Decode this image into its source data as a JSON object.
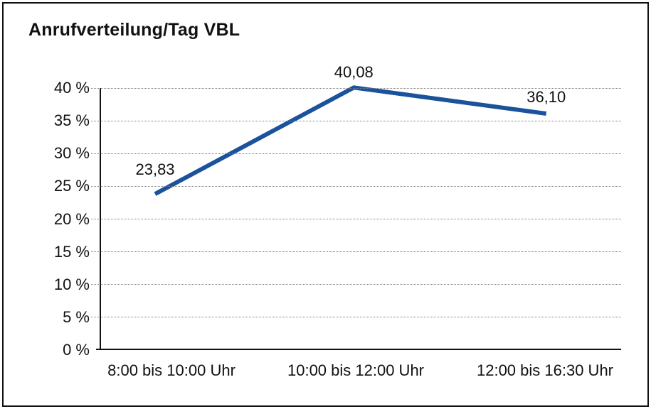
{
  "chart_data": {
    "type": "line",
    "title": "Anrufverteilung/Tag VBL",
    "categories": [
      "8:00 bis 10:00 Uhr",
      "10:00 bis 12:00 Uhr",
      "12:00 bis 16:30 Uhr"
    ],
    "series": [
      {
        "values": [
          23.83,
          40.08,
          36.1
        ]
      }
    ],
    "point_labels": [
      "23,83",
      "40,08",
      "36,10"
    ],
    "xlabel": "",
    "ylabel": "",
    "ylim": [
      0,
      40
    ],
    "ytick_step": 5,
    "ytick_labels": [
      "0 %",
      "5 %",
      "10 %",
      "15 %",
      "20 %",
      "25 %",
      "30 %",
      "35 %",
      "40 %"
    ],
    "grid": "horizontal-dotted",
    "legend": "none",
    "colors": {
      "line": "#1A529C",
      "axis": "#111111",
      "grid": "#7d7d7d",
      "text": "#111111",
      "background": "#ffffff"
    }
  }
}
